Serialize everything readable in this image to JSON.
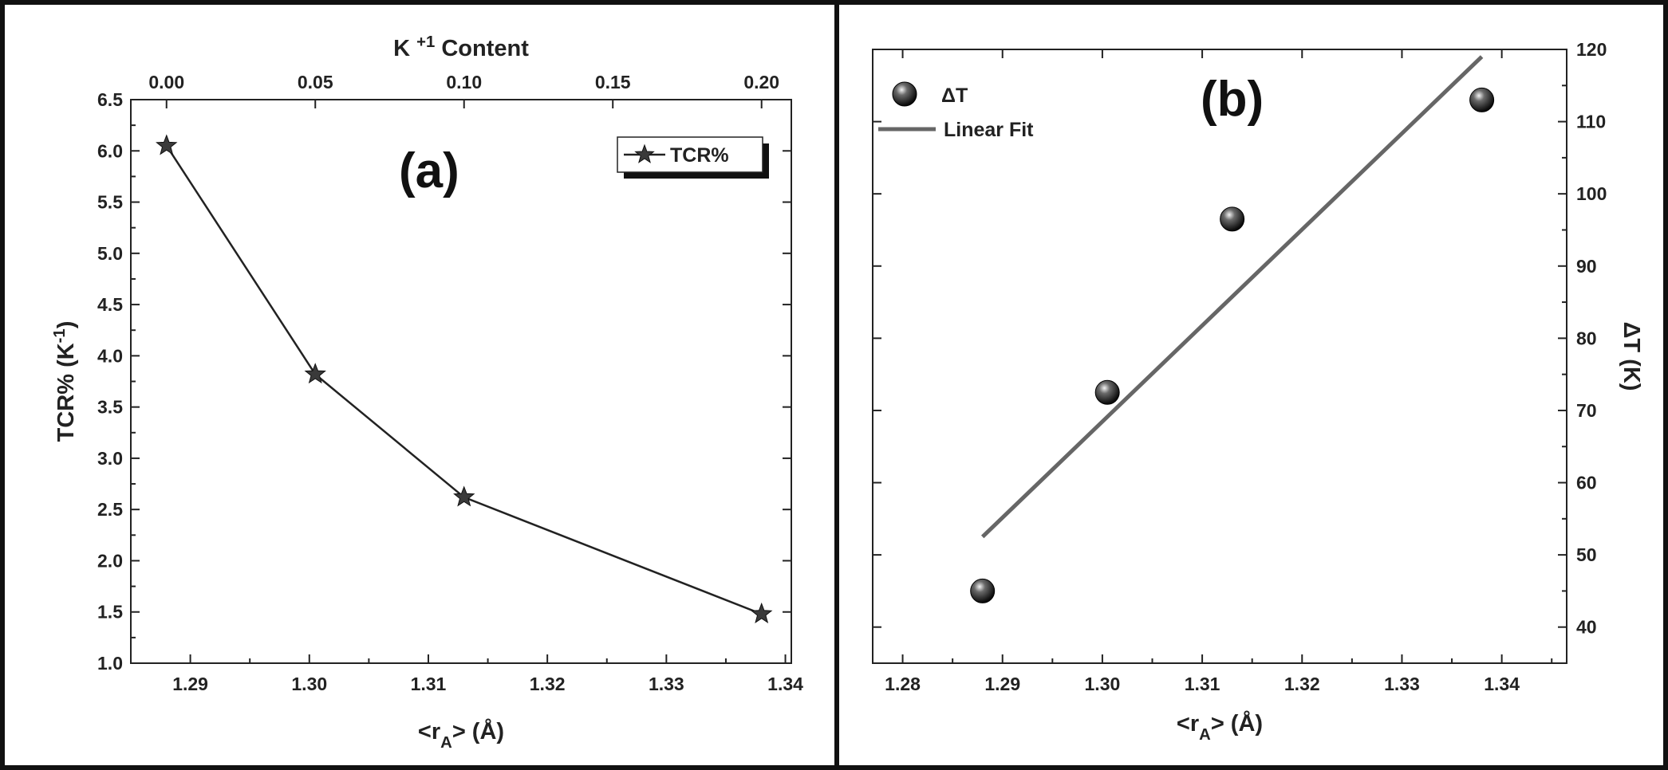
{
  "chart_data": [
    {
      "type": "line",
      "panel_label": "(a)",
      "x": [
        1.288,
        1.3005,
        1.313,
        1.338
      ],
      "series": [
        {
          "name": "TCR%",
          "values": [
            6.05,
            3.82,
            2.62,
            1.48
          ],
          "color": "#222222",
          "marker": "star"
        }
      ],
      "xlabel_main": "<r",
      "xlabel_sub": "A",
      "xlabel_tail": "> (Å)",
      "ylabel_main": "TCR% (K",
      "ylabel_sup": "-1",
      "ylabel_tail": ")",
      "top_xlabel_main": "K",
      "top_xlabel_sup": "+1",
      "top_xlabel_tail": " Content",
      "xlim": [
        1.285,
        1.3405
      ],
      "ylim": [
        1.0,
        6.5
      ],
      "xticks": [
        "1.29",
        "1.30",
        "1.31",
        "1.32",
        "1.33",
        "1.34"
      ],
      "yticks": [
        "1.0",
        "1.5",
        "2.0",
        "2.5",
        "3.0",
        "3.5",
        "4.0",
        "4.5",
        "5.0",
        "5.5",
        "6.0",
        "6.5"
      ],
      "top_ticks": [
        "0.00",
        "0.05",
        "0.10",
        "0.15",
        "0.20"
      ],
      "top_tick_positions": [
        1.288,
        1.3005,
        1.313,
        1.3255,
        1.338
      ],
      "legend_position": "top-right",
      "grid": false
    },
    {
      "type": "scatter",
      "panel_label": "(b)",
      "x": [
        1.288,
        1.3005,
        1.313,
        1.338
      ],
      "series": [
        {
          "name": "ΔT",
          "values": [
            45,
            72.5,
            96.5,
            113
          ],
          "color": "#1a1a1a",
          "marker": "sphere"
        },
        {
          "name": "Linear Fit",
          "fit_x": [
            1.288,
            1.338
          ],
          "fit_y": [
            52.5,
            119
          ],
          "color": "#666666",
          "marker": "line"
        }
      ],
      "xlabel_main": "<r",
      "xlabel_sub": "A",
      "xlabel_tail": "> (Å)",
      "ylabel": "ΔT (K)",
      "xlim": [
        1.277,
        1.3465
      ],
      "ylim": [
        35,
        120
      ],
      "xticks": [
        "1.28",
        "1.29",
        "1.30",
        "1.31",
        "1.32",
        "1.33",
        "1.34"
      ],
      "yticks": [
        "40",
        "50",
        "60",
        "70",
        "80",
        "90",
        "100",
        "110",
        "120"
      ],
      "y_axis_side": "right",
      "legend_position": "top-left",
      "grid": false
    }
  ]
}
